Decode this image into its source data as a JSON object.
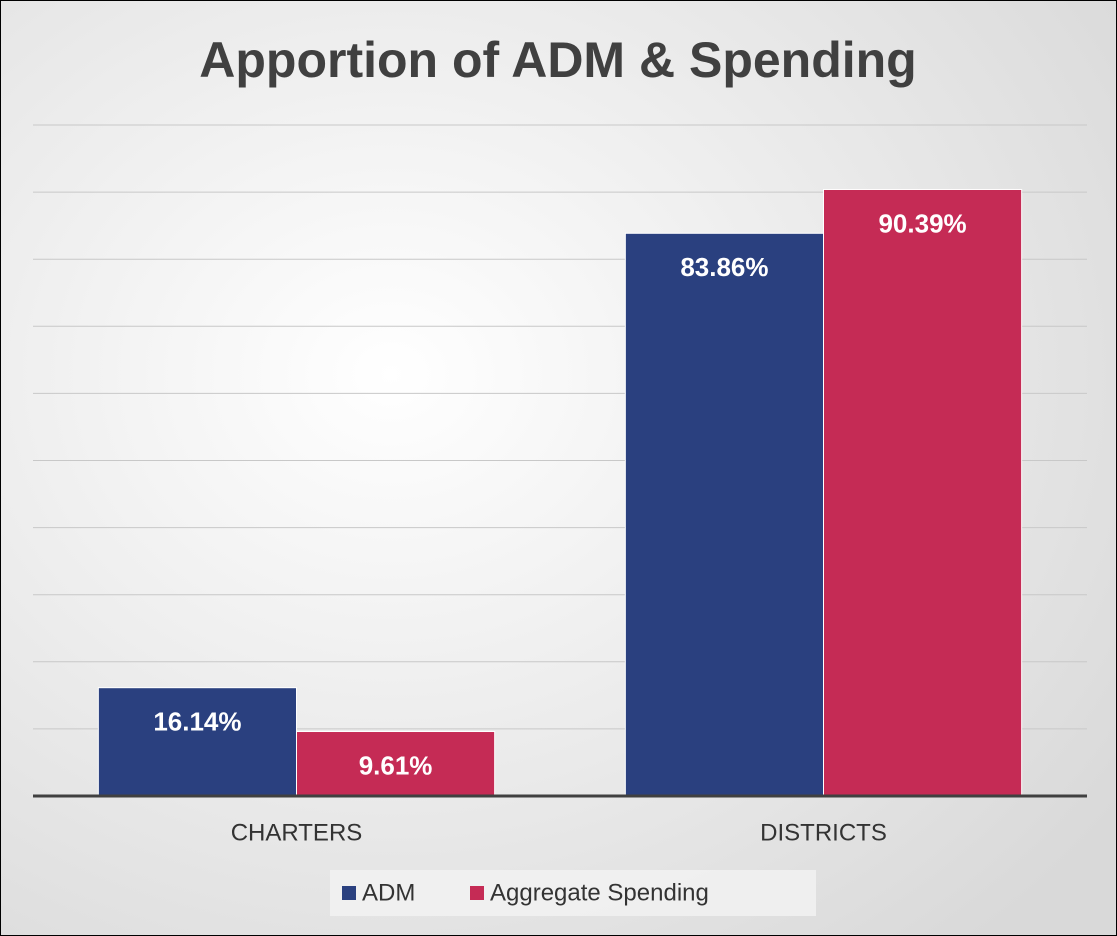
{
  "chart_data": {
    "type": "bar",
    "title": "Apportion of ADM & Spending",
    "categories": [
      "CHARTERS",
      "DISTRICTS"
    ],
    "series": [
      {
        "name": "ADM",
        "color": "#2a407f",
        "values": [
          16.14,
          83.86
        ],
        "value_labels": [
          "16.14%",
          "83.86%"
        ]
      },
      {
        "name": "Aggregate Spending",
        "color": "#c52b55",
        "values": [
          9.61,
          90.39
        ],
        "value_labels": [
          "9.61%",
          "90.39%"
        ]
      }
    ],
    "ylim": [
      0,
      100
    ],
    "yticks": [
      0,
      10,
      20,
      30,
      40,
      50,
      60,
      70,
      80,
      90,
      100
    ],
    "grid": true,
    "legend": "bottom"
  }
}
